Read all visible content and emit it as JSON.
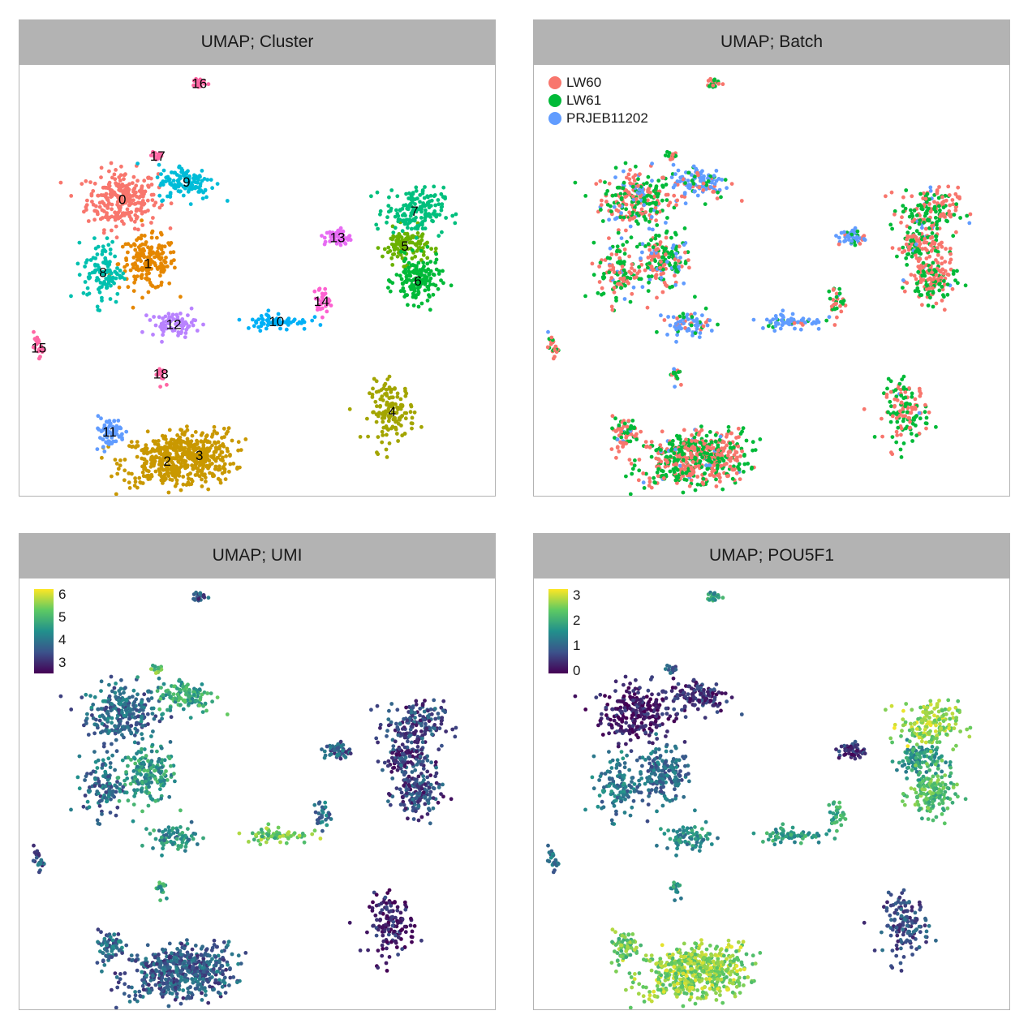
{
  "panels": [
    {
      "title": "UMAP; Cluster"
    },
    {
      "title": "UMAP; Batch"
    },
    {
      "title": "UMAP; UMI"
    },
    {
      "title": "UMAP; POU5F1"
    }
  ],
  "chart_data": [
    {
      "type": "scatter",
      "title": "UMAP; Cluster",
      "color_by": "cluster",
      "clusters": [
        {
          "label": "0",
          "color": "#F8766D",
          "center": [
            -5.6,
            5.4
          ]
        },
        {
          "label": "1",
          "color": "#E58700",
          "center": [
            -4.8,
            3.2
          ]
        },
        {
          "label": "2",
          "color": "#C99800",
          "center": [
            -4.2,
            -3.6
          ]
        },
        {
          "label": "3",
          "color": "#C99800",
          "center": [
            -3.2,
            -3.4
          ]
        },
        {
          "label": "4",
          "color": "#A3A500",
          "center": [
            2.8,
            -1.9
          ]
        },
        {
          "label": "5",
          "color": "#6BB100",
          "center": [
            3.2,
            3.8
          ]
        },
        {
          "label": "6",
          "color": "#00BA38",
          "center": [
            3.6,
            2.6
          ]
        },
        {
          "label": "7",
          "color": "#00BF7D",
          "center": [
            3.5,
            5.0
          ]
        },
        {
          "label": "8",
          "color": "#00C0AF",
          "center": [
            -6.2,
            2.9
          ]
        },
        {
          "label": "9",
          "color": "#00BCD8",
          "center": [
            -3.6,
            6.0
          ]
        },
        {
          "label": "10",
          "color": "#00B0F6",
          "center": [
            -0.8,
            1.2
          ]
        },
        {
          "label": "11",
          "color": "#619CFF",
          "center": [
            -6.0,
            -2.6
          ]
        },
        {
          "label": "12",
          "color": "#B983FF",
          "center": [
            -4.0,
            1.1
          ]
        },
        {
          "label": "13",
          "color": "#E76BF3",
          "center": [
            1.1,
            4.1
          ]
        },
        {
          "label": "14",
          "color": "#FD61D1",
          "center": [
            0.6,
            1.9
          ]
        },
        {
          "label": "15",
          "color": "#FF67A4",
          "center": [
            -8.2,
            0.3
          ]
        },
        {
          "label": "16",
          "color": "#FF67A4",
          "center": [
            -3.2,
            9.4
          ]
        },
        {
          "label": "17",
          "color": "#FF67A4",
          "center": [
            -4.5,
            6.9
          ]
        },
        {
          "label": "18",
          "color": "#FF67A4",
          "center": [
            -4.4,
            -0.6
          ]
        }
      ]
    },
    {
      "type": "scatter",
      "title": "UMAP; Batch",
      "color_by": "batch",
      "legend": [
        {
          "label": "LW60",
          "color": "#F8766D"
        },
        {
          "label": "LW61",
          "color": "#00BA38"
        },
        {
          "label": "PRJEB11202",
          "color": "#619CFF"
        }
      ],
      "legend_position": "top-left"
    },
    {
      "type": "scatter",
      "title": "UMAP; UMI",
      "color_by": "log10 UMI",
      "colorbar": {
        "min": 2.8,
        "max": 6.6,
        "ticks": [
          "3",
          "4",
          "5",
          "6"
        ],
        "tick_values": [
          3,
          4,
          5,
          6
        ],
        "palette": "viridis"
      },
      "legend_position": "top-left"
    },
    {
      "type": "scatter",
      "title": "UMAP; POU5F1",
      "color_by": "POU5F1 expression",
      "colorbar": {
        "min": 0,
        "max": 3.3,
        "ticks": [
          "0",
          "1",
          "2",
          "3"
        ],
        "tick_values": [
          0,
          1,
          2,
          3
        ],
        "palette": "viridis"
      },
      "legend_position": "top-left"
    }
  ]
}
